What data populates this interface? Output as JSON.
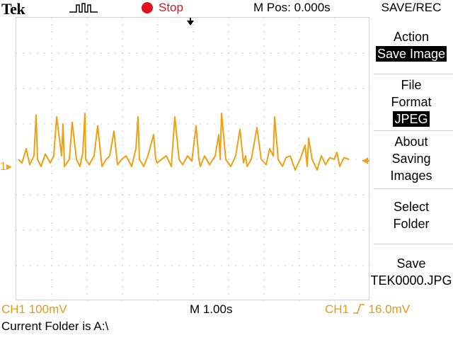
{
  "brand": "Tek",
  "acquisition": {
    "icon": "acquisition-pulse-icon",
    "state": "Stop",
    "state_icon": "stop-dot-icon",
    "state_color": "#e0101c"
  },
  "horizontal_position": "M Pos: 0.000s",
  "menu": {
    "title": "SAVE/REC",
    "items": [
      {
        "lines": [
          "Action"
        ],
        "value": "Save Image"
      },
      {
        "lines": [
          "File",
          "Format"
        ],
        "value": "JPEG"
      },
      {
        "lines": [
          "About",
          "Saving",
          "Images"
        ]
      },
      {
        "lines": [
          "Select",
          "Folder"
        ]
      },
      {
        "lines": [
          "Save",
          "TEK0000.JPG"
        ]
      }
    ]
  },
  "channel_marker": "1",
  "readouts": {
    "ch1_scale": "CH1  100mV",
    "timebase": "M 1.00s",
    "trigger_source": "CH1",
    "trigger_level": "16.0mV",
    "status_message": "Current Folder is A:\\"
  },
  "colors": {
    "trace": "#f0a010",
    "grid": "#cfcfcf",
    "stop": "#e0101c"
  },
  "chart_data": {
    "type": "line",
    "x_unit": "s",
    "y_unit": "V",
    "xlim": [
      -5,
      5
    ],
    "ylim": [
      -0.4,
      0.4
    ],
    "grid": true,
    "series": [
      {
        "x": [
          -4.94,
          -4.84,
          -4.72,
          -4.62,
          -4.5,
          -4.44,
          -4.4,
          -4.3,
          -4.18,
          -4.04,
          -3.94,
          -3.86,
          -3.72,
          -3.68,
          -3.64,
          -3.5,
          -3.42,
          -3.3,
          -3.2,
          -3.12,
          -3.06,
          -3.04,
          -2.94,
          -2.8,
          -2.7,
          -2.58,
          -2.46,
          -2.36,
          -2.24,
          -2.14,
          -2.02,
          -1.9,
          -1.74,
          -1.62,
          -1.56,
          -1.52,
          -1.4,
          -1.28,
          -1.12,
          -1.06,
          -1.02,
          -0.9,
          -0.76,
          -0.62,
          -0.52,
          -0.4,
          -0.3,
          -0.16,
          -0.04,
          0.08,
          0.16,
          0.2,
          0.32,
          0.46,
          0.62,
          0.72,
          0.76,
          0.8,
          0.92,
          1.06,
          1.2,
          1.32,
          1.42,
          1.48,
          1.52,
          1.64,
          1.8,
          1.92,
          2.06,
          2.16,
          2.26,
          2.3,
          2.4,
          2.52,
          2.62,
          2.74,
          2.88,
          3.02,
          3.16,
          3.22,
          3.26,
          3.36,
          3.5,
          3.62,
          3.74,
          3.86,
          3.98,
          4.06,
          4.14,
          4.26,
          4.4
        ],
        "y": [
          0.0,
          -0.01,
          0.03,
          -0.015,
          0.01,
          0.125,
          0.0,
          -0.02,
          0.015,
          -0.01,
          0.01,
          0.12,
          0.01,
          0.1,
          -0.02,
          0.0,
          0.105,
          0.0,
          -0.02,
          0.02,
          0.13,
          0.0,
          -0.015,
          0.01,
          0.095,
          -0.02,
          0.0,
          0.01,
          0.08,
          -0.015,
          0.0,
          0.01,
          -0.02,
          0.03,
          0.12,
          0.0,
          -0.02,
          0.01,
          0.07,
          0.0,
          -0.01,
          0.0,
          0.01,
          -0.02,
          0.12,
          0.0,
          -0.015,
          0.01,
          -0.005,
          0.095,
          0.0,
          -0.02,
          0.01,
          -0.015,
          0.01,
          0.07,
          0.0,
          0.13,
          0.0,
          -0.02,
          0.01,
          0.085,
          -0.01,
          0.01,
          -0.02,
          0.0,
          0.09,
          0.0,
          -0.015,
          0.03,
          0.01,
          0.12,
          0.0,
          -0.02,
          0.005,
          0.01,
          -0.03,
          0.0,
          0.04,
          -0.02,
          0.06,
          0.0,
          -0.03,
          0.01,
          -0.015,
          0.005,
          0.0,
          0.02,
          -0.02,
          0.005,
          0.0
        ]
      }
    ]
  }
}
